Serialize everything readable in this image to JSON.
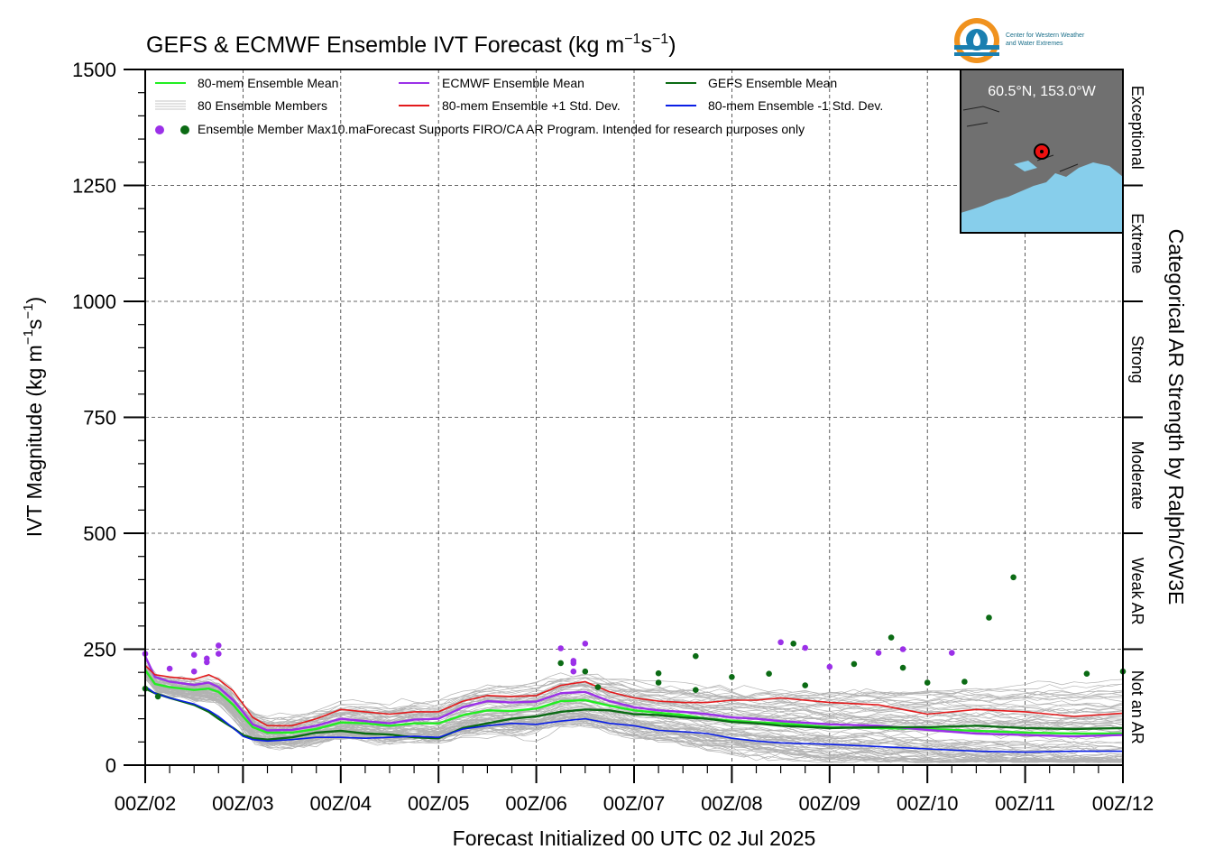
{
  "colors": {
    "mean80": "#22ee22",
    "ecmwf": "#9b30e8",
    "gefs": "#0b6b14",
    "plus_sd": "#e31a1c",
    "minus_sd": "#0a1ee6",
    "members": "#b3b3b3",
    "logo_orange": "#f0921e",
    "logo_blue": "#1a7fb0",
    "map_land": "#707070",
    "map_ocean": "#87ceeb",
    "marker": "#ee1111"
  },
  "logo": {
    "line1": "Center for Western Weather",
    "line2": "and Water Extremes"
  },
  "inset": {
    "location_label": "60.5°N, 153.0°W"
  },
  "chart_data": {
    "type": "line",
    "title_main": "GEFS & ECMWF Ensemble IVT Forecast (kg m",
    "title_sup1": "−1",
    "title_mid": "s",
    "title_sup2": "−1",
    "title_end": ")",
    "xlabel": "Forecast Initialized 00 UTC 02 Jul 2025",
    "ylabel_main": "IVT Magnitude (kg m",
    "ylabel_sup1": "−1",
    "ylabel_mid": "s",
    "ylabel_sup2": "−1",
    "ylabel_end": ")",
    "right_label": "Categorical AR Strength by Ralph/CW3E",
    "x_unit": "days since 00Z/02",
    "xlim": [
      0,
      10
    ],
    "ylim": [
      0,
      1500
    ],
    "yticks": [
      "0",
      "250",
      "500",
      "750",
      "1000",
      "1250",
      "1500"
    ],
    "xticks": [
      "00Z/02",
      "00Z/03",
      "00Z/04",
      "00Z/05",
      "00Z/06",
      "00Z/07",
      "00Z/08",
      "00Z/09",
      "00Z/10",
      "00Z/11",
      "00Z/12"
    ],
    "grid": true,
    "categories": [
      {
        "label": "Not an AR",
        "from": 0,
        "to": 250
      },
      {
        "label": "Weak AR",
        "from": 250,
        "to": 500
      },
      {
        "label": "Moderate",
        "from": 500,
        "to": 750
      },
      {
        "label": "Strong",
        "from": 750,
        "to": 1000
      },
      {
        "label": "Extreme",
        "from": 1000,
        "to": 1250
      },
      {
        "label": "Exceptional",
        "from": 1250,
        "to": 1500
      }
    ],
    "legend": {
      "placement": "top-left",
      "mean80": "80-mem Ensemble Mean",
      "members": "80 Ensemble Members",
      "ecmwf": "ECMWF Ensemble Mean",
      "plus_sd": "80-mem Ensemble +1 Std. Dev.",
      "gefs": "GEFS Ensemble Mean",
      "minus_sd": "80-mem Ensemble -1 Std. Dev.",
      "max_note": "Ensemble Member Max10.maForecast Supports FIRO/CA AR Program. Intended for research purposes only"
    },
    "series": [
      {
        "key": "mean80",
        "x": [
          0,
          0.1,
          0.25,
          0.5,
          0.65,
          0.75,
          0.9,
          1.0,
          1.1,
          1.25,
          1.5,
          1.75,
          2.0,
          2.25,
          2.5,
          2.75,
          3.0,
          3.25,
          3.5,
          3.75,
          4.0,
          4.25,
          4.5,
          4.75,
          5.0,
          5.25,
          5.5,
          5.75,
          6.0,
          6.25,
          6.5,
          7.0,
          7.5,
          8.0,
          8.5,
          9.0,
          9.5,
          10.0
        ],
        "y": [
          205,
          175,
          168,
          162,
          165,
          158,
          130,
          105,
          82,
          70,
          70,
          78,
          92,
          90,
          85,
          90,
          90,
          108,
          118,
          117,
          122,
          138,
          140,
          128,
          118,
          113,
          108,
          100,
          96,
          92,
          90,
          82,
          80,
          78,
          74,
          70,
          68,
          68
        ]
      },
      {
        "key": "ecmwf",
        "x": [
          0,
          0.1,
          0.25,
          0.5,
          0.65,
          0.75,
          0.9,
          1.0,
          1.1,
          1.25,
          1.5,
          1.75,
          2.0,
          2.25,
          2.5,
          2.75,
          3.0,
          3.25,
          3.5,
          3.75,
          4.0,
          4.25,
          4.5,
          4.75,
          5.0,
          5.25,
          5.5,
          5.75,
          6.0,
          6.25,
          6.5,
          7.0,
          7.5,
          8.0,
          8.5,
          9.0,
          9.5,
          10.0
        ],
        "y": [
          235,
          190,
          180,
          173,
          178,
          168,
          140,
          115,
          88,
          75,
          76,
          85,
          100,
          95,
          90,
          98,
          100,
          125,
          138,
          135,
          137,
          155,
          158,
          138,
          125,
          118,
          115,
          110,
          103,
          100,
          95,
          88,
          85,
          76,
          68,
          65,
          62,
          65
        ]
      },
      {
        "key": "gefs",
        "x": [
          0,
          0.1,
          0.25,
          0.5,
          0.65,
          0.75,
          0.9,
          1.0,
          1.1,
          1.25,
          1.5,
          1.75,
          2.0,
          2.25,
          2.5,
          2.75,
          3.0,
          3.25,
          3.5,
          3.75,
          4.0,
          4.25,
          4.5,
          4.75,
          5.0,
          5.25,
          5.5,
          5.75,
          6.0,
          6.25,
          6.5,
          7.0,
          7.5,
          8.0,
          8.5,
          9.0,
          9.5,
          10.0
        ],
        "y": [
          165,
          155,
          145,
          130,
          115,
          100,
          80,
          65,
          58,
          55,
          60,
          70,
          74,
          68,
          66,
          60,
          58,
          80,
          90,
          100,
          105,
          115,
          120,
          118,
          110,
          108,
          103,
          100,
          93,
          90,
          85,
          80,
          82,
          82,
          85,
          80,
          78,
          80
        ]
      },
      {
        "key": "plus_sd",
        "x": [
          0,
          0.1,
          0.25,
          0.5,
          0.65,
          0.75,
          0.9,
          1.0,
          1.1,
          1.25,
          1.5,
          1.75,
          2.0,
          2.25,
          2.5,
          2.75,
          3.0,
          3.25,
          3.5,
          3.75,
          4.0,
          4.25,
          4.5,
          4.75,
          5.0,
          5.25,
          5.5,
          5.75,
          6.0,
          6.25,
          6.5,
          7.0,
          7.5,
          8.0,
          8.5,
          9.0,
          9.5,
          10.0
        ],
        "y": [
          215,
          195,
          190,
          185,
          195,
          185,
          160,
          132,
          103,
          85,
          85,
          100,
          120,
          115,
          110,
          115,
          115,
          138,
          150,
          148,
          150,
          172,
          180,
          158,
          145,
          138,
          135,
          135,
          140,
          140,
          145,
          135,
          130,
          110,
          120,
          115,
          105,
          112
        ]
      },
      {
        "key": "minus_sd",
        "x": [
          0,
          0.1,
          0.25,
          0.5,
          0.65,
          0.75,
          0.9,
          1.0,
          1.1,
          1.25,
          1.5,
          1.75,
          2.0,
          2.25,
          2.5,
          2.75,
          3.0,
          3.25,
          3.5,
          3.75,
          4.0,
          4.25,
          4.5,
          4.75,
          5.0,
          5.25,
          5.5,
          5.75,
          6.0,
          6.25,
          6.5,
          7.0,
          7.5,
          8.0,
          8.5,
          9.0,
          9.5,
          10.0
        ],
        "y": [
          170,
          155,
          145,
          132,
          118,
          105,
          80,
          62,
          55,
          52,
          55,
          60,
          60,
          58,
          60,
          62,
          60,
          78,
          85,
          90,
          88,
          95,
          100,
          90,
          85,
          75,
          72,
          68,
          58,
          52,
          48,
          45,
          40,
          35,
          30,
          28,
          30,
          30
        ]
      }
    ],
    "max_points": [
      {
        "src": "ecmwf",
        "x": 0,
        "y": 240
      },
      {
        "src": "ecmwf",
        "x": 0.25,
        "y": 208
      },
      {
        "src": "ecmwf",
        "x": 0.5,
        "y": 238
      },
      {
        "src": "ecmwf",
        "x": 0.5,
        "y": 202
      },
      {
        "src": "ecmwf",
        "x": 0.63,
        "y": 230
      },
      {
        "src": "ecmwf",
        "x": 0.63,
        "y": 222
      },
      {
        "src": "ecmwf",
        "x": 0.75,
        "y": 258
      },
      {
        "src": "ecmwf",
        "x": 0.75,
        "y": 240
      },
      {
        "src": "ecmwf",
        "x": 4.25,
        "y": 252
      },
      {
        "src": "ecmwf",
        "x": 4.38,
        "y": 225
      },
      {
        "src": "ecmwf",
        "x": 4.38,
        "y": 220
      },
      {
        "src": "ecmwf",
        "x": 4.38,
        "y": 202
      },
      {
        "src": "ecmwf",
        "x": 4.5,
        "y": 262
      },
      {
        "src": "ecmwf",
        "x": 6.5,
        "y": 265
      },
      {
        "src": "ecmwf",
        "x": 6.75,
        "y": 253
      },
      {
        "src": "ecmwf",
        "x": 7.0,
        "y": 212
      },
      {
        "src": "ecmwf",
        "x": 7.5,
        "y": 242
      },
      {
        "src": "ecmwf",
        "x": 7.75,
        "y": 250
      },
      {
        "src": "ecmwf",
        "x": 8.25,
        "y": 242
      },
      {
        "src": "gefs",
        "x": 0,
        "y": 165
      },
      {
        "src": "gefs",
        "x": 0.13,
        "y": 148
      },
      {
        "src": "gefs",
        "x": 4.25,
        "y": 220
      },
      {
        "src": "gefs",
        "x": 4.5,
        "y": 202
      },
      {
        "src": "gefs",
        "x": 4.63,
        "y": 168
      },
      {
        "src": "gefs",
        "x": 5.25,
        "y": 198
      },
      {
        "src": "gefs",
        "x": 5.25,
        "y": 178
      },
      {
        "src": "gefs",
        "x": 5.63,
        "y": 235
      },
      {
        "src": "gefs",
        "x": 5.63,
        "y": 162
      },
      {
        "src": "gefs",
        "x": 6.0,
        "y": 190
      },
      {
        "src": "gefs",
        "x": 6.38,
        "y": 197
      },
      {
        "src": "gefs",
        "x": 6.63,
        "y": 262
      },
      {
        "src": "gefs",
        "x": 6.75,
        "y": 172
      },
      {
        "src": "gefs",
        "x": 7.25,
        "y": 218
      },
      {
        "src": "gefs",
        "x": 7.63,
        "y": 275
      },
      {
        "src": "gefs",
        "x": 7.75,
        "y": 210
      },
      {
        "src": "gefs",
        "x": 8.0,
        "y": 178
      },
      {
        "src": "gefs",
        "x": 8.38,
        "y": 180
      },
      {
        "src": "gefs",
        "x": 8.63,
        "y": 318
      },
      {
        "src": "gefs",
        "x": 8.88,
        "y": 405
      },
      {
        "src": "gefs",
        "x": 9.63,
        "y": 197
      },
      {
        "src": "gefs",
        "x": 10.0,
        "y": 202
      }
    ]
  }
}
